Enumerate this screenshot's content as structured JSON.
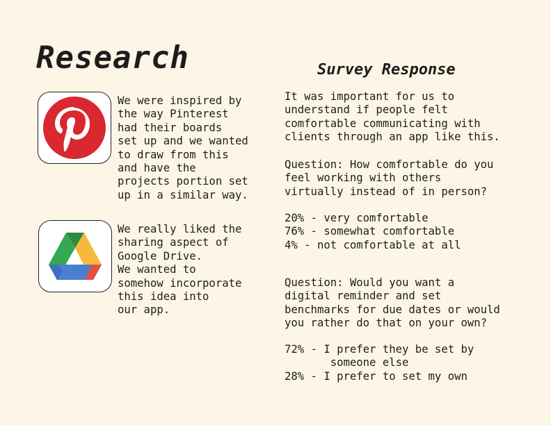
{
  "title": "Research",
  "left": {
    "items": [
      {
        "icon": "pinterest-logo-icon",
        "text": "We were inspired by\nthe way Pinterest\nhad their boards\nset up and we wanted\nto draw from this\nand have the\nprojects portion set\nup in a similar way."
      },
      {
        "icon": "google-drive-logo-icon",
        "text": "We really liked the\nsharing aspect of\nGoogle Drive.\nWe wanted to\nsomehow incorporate\nthis idea into\nour app."
      }
    ]
  },
  "survey": {
    "heading": "Survey Response",
    "intro": "It was important for us to\nunderstand if people felt\ncomfortable communicating with\nclients through an app like this.",
    "q1": "Question: How comfortable do you\nfeel working with others\nvirtually instead of in person?",
    "q1_results": "20% - very comfortable\n76% - somewhat comfortable\n4% - not comfortable at all",
    "q2": "Question: Would you want a\ndigital reminder and set\nbenchmarks for due dates or would\nyou rather do that on your own?",
    "q2_results": "72% - I prefer they be set by\n       someone else\n28% - I prefer to set my own"
  },
  "colors": {
    "background": "#fdf6e6",
    "pinterest_red": "#d9282f"
  }
}
